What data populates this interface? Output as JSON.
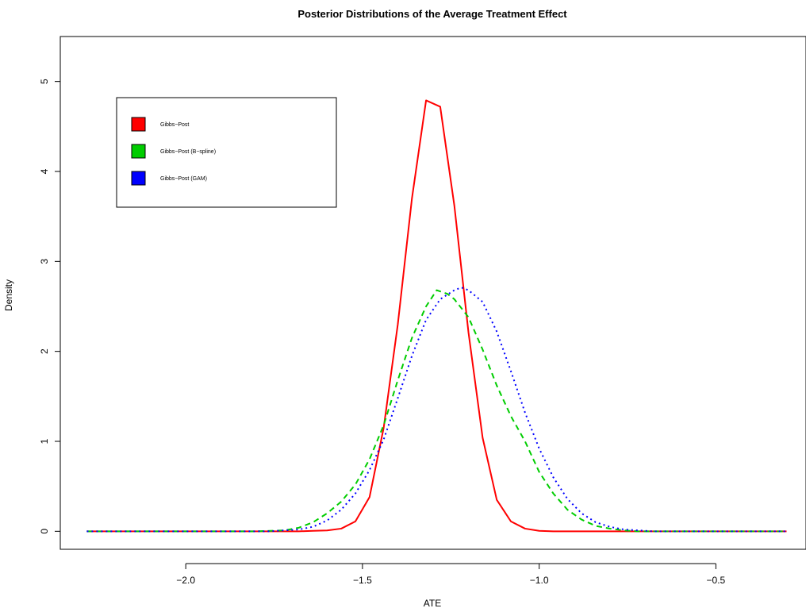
{
  "chart_data": {
    "type": "line",
    "title": "Posterior Distributions of the Average Treatment Effect",
    "xlabel": "ATE",
    "ylabel": "Density",
    "xlim": [
      -2.355,
      -0.245
    ],
    "ylim": [
      -0.2,
      5.5
    ],
    "x_ticks": [
      -2.0,
      -1.5,
      -1.0,
      -0.5
    ],
    "x_tick_labels": [
      "−2.0",
      "−1.5",
      "−1.0",
      "−0.5"
    ],
    "y_ticks": [
      0,
      1,
      2,
      3,
      4,
      5
    ],
    "y_tick_labels": [
      "0",
      "1",
      "2",
      "3",
      "4",
      "5"
    ],
    "grid": false,
    "legend_position": "top-left",
    "series": [
      {
        "name": "Gibbs−Post",
        "color": "#ff0000",
        "line_style": "solid",
        "x": [
          -2.28,
          -1.72,
          -1.68,
          -1.64,
          -1.6,
          -1.56,
          -1.52,
          -1.48,
          -1.44,
          -1.4,
          -1.36,
          -1.32,
          -1.28,
          -1.24,
          -1.2,
          -1.16,
          -1.12,
          -1.08,
          -1.04,
          -1.0,
          -0.96,
          -0.92,
          -0.3
        ],
        "y": [
          0,
          0,
          0,
          0.005,
          0.01,
          0.03,
          0.11,
          0.38,
          1.15,
          2.3,
          3.7,
          4.79,
          4.72,
          3.62,
          2.21,
          1.04,
          0.35,
          0.11,
          0.03,
          0.005,
          0,
          0,
          0
        ]
      },
      {
        "name": "Gibbs−Post (B−spline)",
        "color": "#00cd00",
        "line_style": "dashed",
        "x": [
          -2.28,
          -1.8,
          -1.72,
          -1.68,
          -1.64,
          -1.6,
          -1.56,
          -1.52,
          -1.48,
          -1.44,
          -1.4,
          -1.36,
          -1.32,
          -1.29,
          -1.26,
          -1.24,
          -1.2,
          -1.16,
          -1.12,
          -1.08,
          -1.04,
          -1.0,
          -0.96,
          -0.92,
          -0.88,
          -0.84,
          -0.8,
          -0.76,
          -0.72,
          -0.3
        ],
        "y": [
          0,
          0,
          0.01,
          0.04,
          0.1,
          0.2,
          0.33,
          0.52,
          0.8,
          1.18,
          1.68,
          2.15,
          2.5,
          2.68,
          2.64,
          2.58,
          2.38,
          2.02,
          1.62,
          1.28,
          1.0,
          0.66,
          0.42,
          0.24,
          0.13,
          0.06,
          0.03,
          0.01,
          0,
          0
        ]
      },
      {
        "name": "Gibbs−Post (GAM)",
        "color": "#0000ff",
        "line_style": "dotted",
        "x": [
          -2.28,
          -1.76,
          -1.72,
          -1.68,
          -1.64,
          -1.6,
          -1.56,
          -1.52,
          -1.48,
          -1.44,
          -1.4,
          -1.36,
          -1.32,
          -1.28,
          -1.24,
          -1.22,
          -1.2,
          -1.16,
          -1.12,
          -1.08,
          -1.04,
          -1.0,
          -0.96,
          -0.92,
          -0.88,
          -0.84,
          -0.8,
          -0.76,
          -0.72,
          -0.68,
          -0.3
        ],
        "y": [
          0,
          0,
          0.01,
          0.02,
          0.05,
          0.12,
          0.24,
          0.42,
          0.68,
          1.02,
          1.48,
          1.95,
          2.35,
          2.58,
          2.68,
          2.71,
          2.68,
          2.55,
          2.22,
          1.78,
          1.32,
          0.92,
          0.6,
          0.36,
          0.2,
          0.1,
          0.05,
          0.02,
          0.01,
          0,
          0
        ]
      }
    ]
  }
}
